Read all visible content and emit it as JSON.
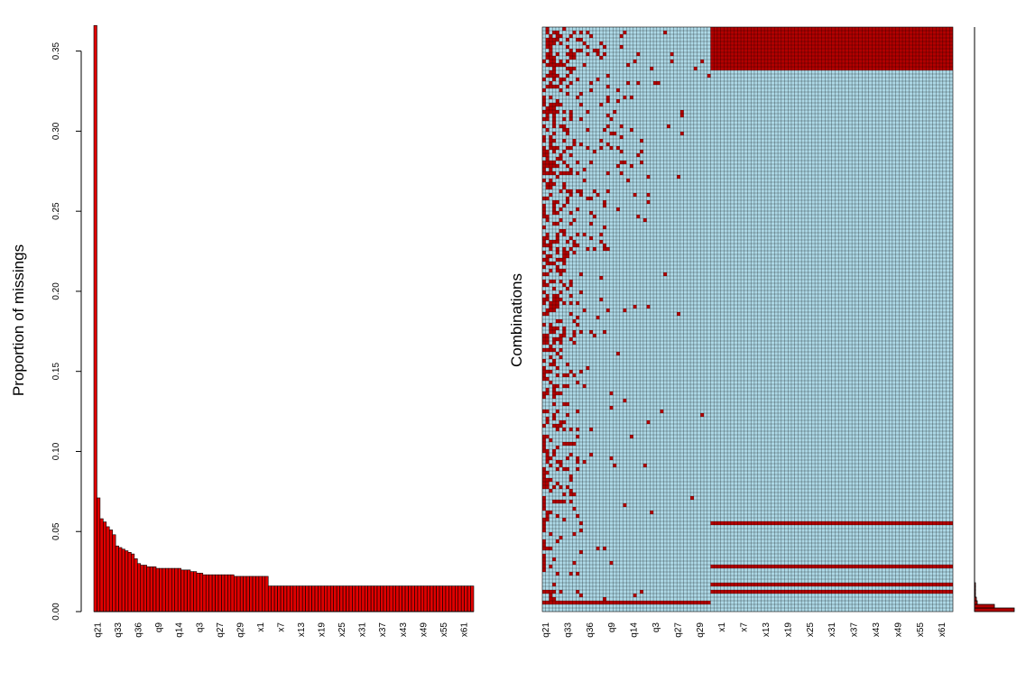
{
  "chart_data": [
    {
      "type": "bar",
      "ylabel": "Proportion of missings",
      "xlabel": "",
      "ylim": [
        0,
        0.365
      ],
      "yticks": [
        0.0,
        0.05,
        0.1,
        0.15,
        0.2,
        0.25,
        0.3,
        0.35
      ],
      "ytick_labels": [
        "0.00",
        "0.05",
        "0.10",
        "0.15",
        "0.20",
        "0.25",
        "0.30",
        "0.35"
      ],
      "xtick_labels": [
        "q21",
        "q33",
        "q36",
        "q9",
        "q14",
        "q3",
        "q27",
        "q29",
        "x1",
        "x7",
        "x13",
        "x19",
        "x25",
        "x31",
        "x37",
        "x43",
        "x49",
        "x55",
        "x61"
      ],
      "colors": {
        "bar": "#e00000",
        "border": "#000000"
      },
      "values": [
        0.366,
        0.071,
        0.058,
        0.056,
        0.053,
        0.051,
        0.048,
        0.041,
        0.04,
        0.039,
        0.038,
        0.037,
        0.036,
        0.033,
        0.03,
        0.029,
        0.029,
        0.028,
        0.028,
        0.028,
        0.027,
        0.027,
        0.027,
        0.027,
        0.027,
        0.027,
        0.027,
        0.027,
        0.026,
        0.026,
        0.026,
        0.025,
        0.025,
        0.024,
        0.024,
        0.023,
        0.023,
        0.023,
        0.023,
        0.023,
        0.023,
        0.023,
        0.023,
        0.023,
        0.023,
        0.022,
        0.022,
        0.022,
        0.022,
        0.022,
        0.022,
        0.022,
        0.022,
        0.022,
        0.022,
        0.022,
        0.016,
        0.016,
        0.016,
        0.016,
        0.016,
        0.016,
        0.016,
        0.016,
        0.016,
        0.016,
        0.016,
        0.016,
        0.016,
        0.016,
        0.016,
        0.016,
        0.016,
        0.016,
        0.016,
        0.016,
        0.016,
        0.016,
        0.016,
        0.016,
        0.016,
        0.016,
        0.016,
        0.016,
        0.016,
        0.016,
        0.016,
        0.016,
        0.016,
        0.016,
        0.016,
        0.016,
        0.016,
        0.016,
        0.016,
        0.016,
        0.016,
        0.016,
        0.016,
        0.016,
        0.016,
        0.016,
        0.016,
        0.016,
        0.016,
        0.016,
        0.016,
        0.016,
        0.016,
        0.016,
        0.016,
        0.016,
        0.016,
        0.016,
        0.016,
        0.016,
        0.016,
        0.016,
        0.016,
        0.016,
        0.016,
        0.016
      ]
    },
    {
      "type": "heatmap",
      "ylabel": "Combinations",
      "xlabel": "",
      "xtick_labels": [
        "q21",
        "q33",
        "q36",
        "q9",
        "q14",
        "q3",
        "q27",
        "q29",
        "x1",
        "x7",
        "x13",
        "x19",
        "x25",
        "x31",
        "x37",
        "x43",
        "x49",
        "x55",
        "x61"
      ],
      "n_variables": 122,
      "n_q_variables": 50,
      "n_combinations": 162,
      "colors": {
        "missing": "#b20000",
        "observed": "#add8e6",
        "grid": "#000000"
      },
      "missing_blocks": [
        {
          "rows": [
            0,
            12
          ],
          "cols": [
            50,
            122
          ]
        },
        {
          "rows": [
            137,
            138
          ],
          "cols": [
            50,
            122
          ]
        },
        {
          "rows": [
            149,
            150
          ],
          "cols": [
            50,
            122
          ]
        },
        {
          "rows": [
            154,
            155
          ],
          "cols": [
            50,
            122
          ]
        },
        {
          "rows": [
            156,
            157
          ],
          "cols": [
            50,
            122
          ]
        },
        {
          "rows": [
            159,
            160
          ],
          "cols": [
            0,
            50
          ]
        }
      ],
      "combination_frequencies_note": "",
      "frequency_bars_drawn": "right margin"
    }
  ]
}
